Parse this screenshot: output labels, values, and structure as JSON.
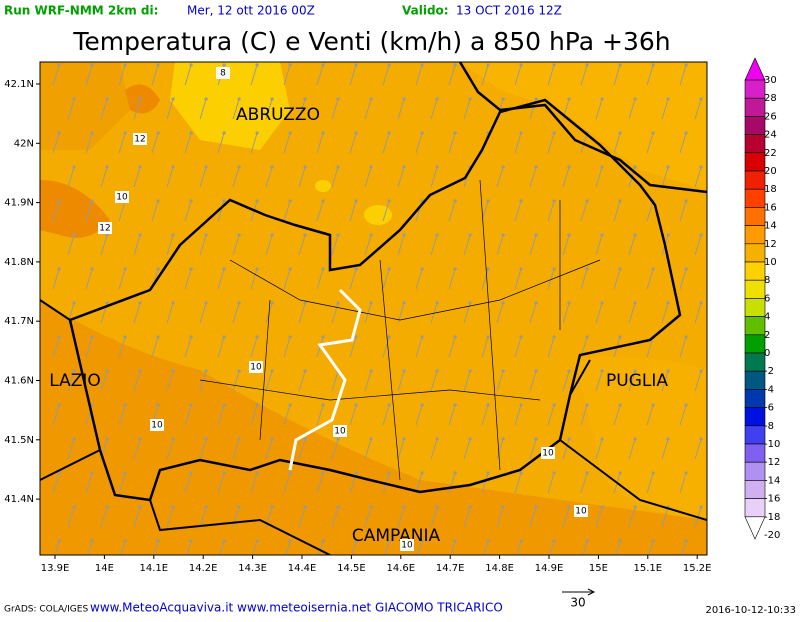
{
  "header": {
    "run_label": "Run WRF-NMM 2km di:",
    "run_date": "Mer, 12 ott 2016 00Z",
    "valid_label": "Valido:",
    "valid_date": "13 OCT 2016 12Z",
    "title": "Temperatura (C) e Venti (km/h) a 850 hPa +36h"
  },
  "axes": {
    "lat_labels": [
      "42.1N",
      "42N",
      "41.9N",
      "41.8N",
      "41.7N",
      "41.6N",
      "41.5N",
      "41.4N"
    ],
    "lon_labels": [
      "13.9E",
      "14E",
      "14.1E",
      "14.2E",
      "14.3E",
      "14.4E",
      "14.5E",
      "14.6E",
      "14.7E",
      "14.8E",
      "14.9E",
      "15E",
      "15.1E",
      "15.2E"
    ]
  },
  "regions": [
    "ABRUZZO",
    "LAZIO",
    "PUGLIA",
    "CAMPANIA"
  ],
  "contour_labels": [
    "8",
    "12",
    "10",
    "12",
    "10",
    "10",
    "10",
    "10",
    "10",
    "10"
  ],
  "colorbar": {
    "labels": [
      "30",
      "28",
      "26",
      "24",
      "22",
      "20",
      "18",
      "16",
      "14",
      "12",
      "10",
      "8",
      "6",
      "4",
      "2",
      "0",
      "-2",
      "-4",
      "-6",
      "-8",
      "-10",
      "-12",
      "-14",
      "-16",
      "-18",
      "-20"
    ],
    "colors": [
      "#f000f0",
      "#d820c8",
      "#c01898",
      "#a80868",
      "#b80030",
      "#d80000",
      "#f02000",
      "#ff4000",
      "#ff7000",
      "#ff9a00",
      "#f5b000",
      "#ffd000",
      "#f0e000",
      "#c8e000",
      "#60c000",
      "#00a000",
      "#007850",
      "#005880",
      "#0038b0",
      "#0010e0",
      "#4040f0",
      "#8060f0",
      "#b090f0",
      "#d0b0f0",
      "#e8d0f8",
      "#ffffff"
    ]
  },
  "footer": {
    "software": "GrADS: COLA/IGES",
    "credits": "www.MeteoAcquaviva.it www.meteoisernia.net GIACOMO TRICARICO",
    "wind_scale": "30",
    "timestamp": "2016-10-12-10:33"
  }
}
